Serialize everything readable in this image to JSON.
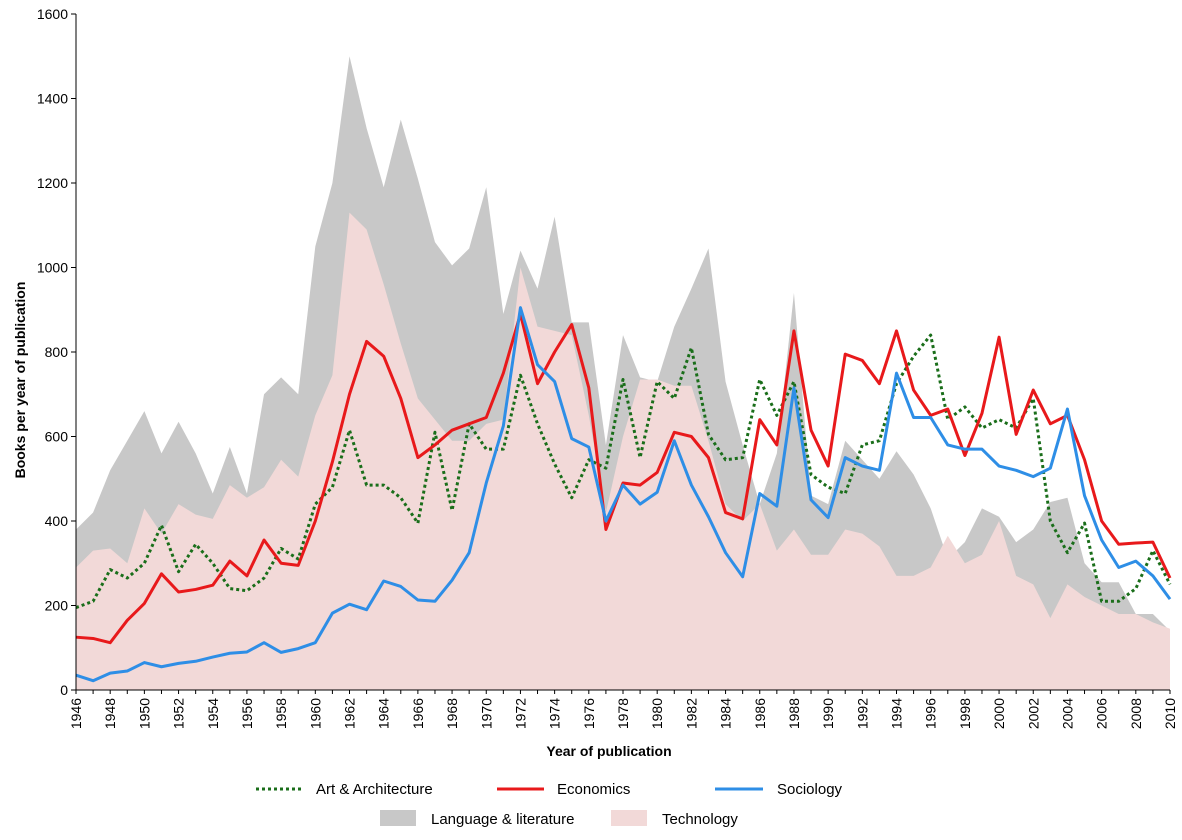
{
  "chart_data": {
    "type": "line",
    "xlabel": "Year of publication",
    "ylabel": "Books per year of publication",
    "xlim": [
      1946,
      2010
    ],
    "ylim": [
      0,
      1600
    ],
    "yticks": [
      0,
      200,
      400,
      600,
      800,
      1000,
      1200,
      1400,
      1600
    ],
    "xticks": [
      1946,
      1948,
      1950,
      1952,
      1954,
      1956,
      1958,
      1960,
      1962,
      1964,
      1966,
      1968,
      1970,
      1972,
      1974,
      1976,
      1978,
      1980,
      1982,
      1984,
      1986,
      1988,
      1990,
      1992,
      1994,
      1996,
      1998,
      2000,
      2002,
      2004,
      2006,
      2008,
      2010
    ],
    "grid": false,
    "legend_position": "bottom",
    "x": [
      1946,
      1947,
      1948,
      1949,
      1950,
      1951,
      1952,
      1953,
      1954,
      1955,
      1956,
      1957,
      1958,
      1959,
      1960,
      1961,
      1962,
      1963,
      1964,
      1965,
      1966,
      1967,
      1968,
      1969,
      1970,
      1971,
      1972,
      1973,
      1974,
      1975,
      1976,
      1977,
      1978,
      1979,
      1980,
      1981,
      1982,
      1983,
      1984,
      1985,
      1986,
      1987,
      1988,
      1989,
      1990,
      1991,
      1992,
      1993,
      1994,
      1995,
      1996,
      1997,
      1998,
      1999,
      2000,
      2001,
      2002,
      2003,
      2004,
      2005,
      2006,
      2007,
      2008,
      2009,
      2010
    ],
    "areas": [
      {
        "name": "Language & literature",
        "color": "#c8c8c8",
        "values": [
          380,
          420,
          520,
          590,
          660,
          560,
          635,
          560,
          465,
          575,
          465,
          700,
          740,
          700,
          1050,
          1200,
          1500,
          1330,
          1190,
          1350,
          1210,
          1060,
          1005,
          1045,
          1190,
          890,
          1040,
          950,
          1120,
          870,
          870,
          580,
          840,
          740,
          730,
          860,
          950,
          1045,
          730,
          580,
          440,
          560,
          940,
          460,
          440,
          590,
          545,
          500,
          565,
          510,
          430,
          310,
          350,
          430,
          410,
          350,
          380,
          445,
          455,
          300,
          255,
          255,
          180,
          180,
          140
        ]
      },
      {
        "name": "Technology",
        "color": "#f2d9d8",
        "values": [
          290,
          330,
          335,
          300,
          430,
          370,
          440,
          415,
          405,
          485,
          455,
          480,
          545,
          505,
          650,
          745,
          1130,
          1090,
          960,
          820,
          690,
          640,
          590,
          590,
          630,
          640,
          1000,
          860,
          850,
          840,
          650,
          420,
          600,
          735,
          735,
          720,
          720,
          590,
          440,
          400,
          440,
          330,
          380,
          320,
          320,
          380,
          370,
          340,
          270,
          270,
          290,
          365,
          300,
          320,
          400,
          270,
          250,
          170,
          250,
          220,
          200,
          180,
          180,
          160,
          145
        ]
      }
    ],
    "series": [
      {
        "name": "Art & Architecture",
        "color": "#1a6e1a",
        "style": "dotted",
        "values": [
          195,
          210,
          285,
          265,
          300,
          390,
          280,
          345,
          300,
          240,
          235,
          265,
          335,
          310,
          440,
          480,
          615,
          485,
          485,
          455,
          395,
          610,
          425,
          630,
          570,
          570,
          745,
          630,
          535,
          455,
          545,
          525,
          735,
          550,
          730,
          690,
          810,
          605,
          545,
          550,
          735,
          650,
          730,
          510,
          480,
          465,
          580,
          590,
          725,
          790,
          840,
          640,
          670,
          620,
          640,
          620,
          690,
          400,
          325,
          395,
          210,
          210,
          240,
          330,
          250
        ]
      },
      {
        "name": "Economics",
        "color": "#e8191b",
        "style": "solid",
        "values": [
          125,
          122,
          112,
          165,
          205,
          275,
          232,
          238,
          248,
          305,
          270,
          355,
          300,
          295,
          400,
          540,
          700,
          825,
          790,
          690,
          550,
          580,
          615,
          630,
          645,
          750,
          890,
          725,
          800,
          865,
          715,
          380,
          490,
          485,
          515,
          610,
          600,
          550,
          420,
          405,
          640,
          580,
          850,
          615,
          530,
          795,
          780,
          725,
          850,
          710,
          650,
          665,
          555,
          655,
          835,
          605,
          710,
          630,
          650,
          545,
          400,
          345,
          348,
          350,
          265
        ]
      },
      {
        "name": "Sociology",
        "color": "#2e8ee6",
        "style": "solid",
        "values": [
          35,
          22,
          40,
          45,
          65,
          55,
          63,
          68,
          78,
          87,
          90,
          112,
          89,
          98,
          112,
          182,
          203,
          190,
          258,
          245,
          213,
          210,
          260,
          325,
          490,
          625,
          905,
          770,
          730,
          595,
          575,
          400,
          485,
          440,
          468,
          590,
          485,
          410,
          325,
          268,
          465,
          435,
          715,
          450,
          408,
          550,
          530,
          520,
          750,
          645,
          645,
          580,
          570,
          570,
          530,
          520,
          505,
          525,
          665,
          460,
          355,
          290,
          305,
          270,
          215
        ]
      }
    ]
  }
}
